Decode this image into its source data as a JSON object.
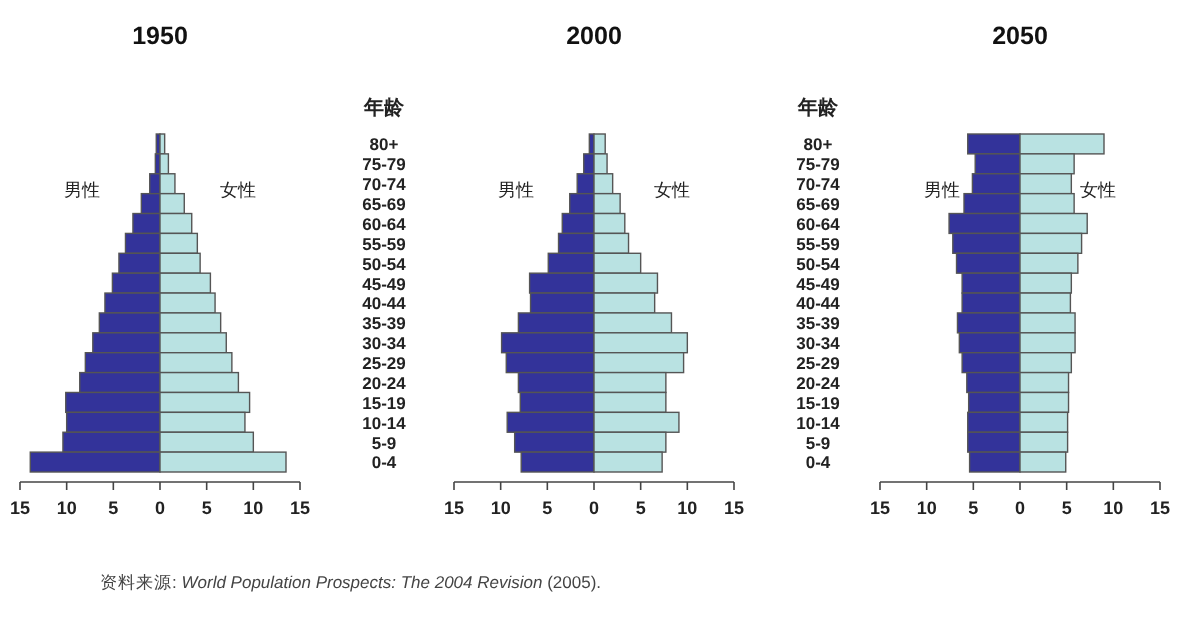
{
  "chart_data": [
    {
      "type": "bar",
      "orientation": "horizontal",
      "stacked": true,
      "title": "1950",
      "ylabel": "年龄",
      "categories": [
        "80+",
        "75-79",
        "70-74",
        "65-69",
        "60-64",
        "55-59",
        "50-54",
        "45-49",
        "40-44",
        "35-39",
        "30-34",
        "25-29",
        "20-24",
        "15-19",
        "10-14",
        "5-9",
        "0-4"
      ],
      "series": [
        {
          "name": "男性",
          "color": "#33339a",
          "values": [
            -0.4,
            -0.5,
            -1.1,
            -2.0,
            -2.9,
            -3.7,
            -4.4,
            -5.1,
            -5.9,
            -6.5,
            -7.2,
            -8.0,
            -8.6,
            -10.1,
            -10.0,
            -10.4,
            -13.9
          ]
        },
        {
          "name": "女性",
          "color": "#b9e2e2",
          "values": [
            0.5,
            0.9,
            1.6,
            2.6,
            3.4,
            4.0,
            4.3,
            5.4,
            5.9,
            6.5,
            7.1,
            7.7,
            8.4,
            9.6,
            9.1,
            10.0,
            13.5
          ]
        }
      ],
      "xlim": [
        -15,
        15
      ],
      "xticks": [
        {
          "value": -15,
          "label": "15"
        },
        {
          "value": -10,
          "label": "10"
        },
        {
          "value": -5,
          "label": "5"
        },
        0,
        5,
        10,
        15
      ],
      "annotations": [
        "资料来源: *World Population Prospects: The 2004 Revision* (2005)."
      ]
    },
    {
      "type": "bar",
      "orientation": "horizontal",
      "stacked": true,
      "title": "2000",
      "ylabel": "年龄",
      "categories": [
        "80+",
        "75-79",
        "70-74",
        "65-69",
        "60-64",
        "55-59",
        "50-54",
        "45-49",
        "40-44",
        "35-39",
        "30-34",
        "25-29",
        "20-24",
        "15-19",
        "10-14",
        "5-9",
        "0-4"
      ],
      "series": [
        {
          "name": "男性",
          "color": "#33339a",
          "values": [
            -0.5,
            -1.1,
            -1.8,
            -2.6,
            -3.4,
            -3.8,
            -4.9,
            -6.9,
            -6.8,
            -8.1,
            -9.9,
            -9.4,
            -8.1,
            -7.9,
            -9.3,
            -8.5,
            -7.8
          ]
        },
        {
          "name": "女性",
          "color": "#b9e2e2",
          "values": [
            1.2,
            1.4,
            2.0,
            2.8,
            3.3,
            3.7,
            5.0,
            6.8,
            6.5,
            8.3,
            10.0,
            9.6,
            7.7,
            7.7,
            9.1,
            7.7,
            7.3
          ]
        }
      ],
      "xlim": [
        -15,
        15
      ],
      "xticks": [
        {
          "value": -15,
          "label": "15"
        },
        {
          "value": -10,
          "label": "10"
        },
        {
          "value": -5,
          "label": "5"
        },
        0,
        5,
        10,
        15
      ]
    },
    {
      "type": "bar",
      "orientation": "horizontal",
      "stacked": true,
      "title": "2050",
      "tick_labels": "x",
      "categories": [
        null,
        null,
        null,
        null,
        null,
        null,
        null,
        null,
        null,
        null,
        null,
        null,
        null,
        null,
        null,
        null,
        null
      ],
      "series": [
        {
          "name": "男性",
          "color": "#33339a",
          "values": [
            -5.6,
            -4.8,
            -5.1,
            -6.0,
            -7.6,
            -7.2,
            -6.8,
            -6.2,
            -6.2,
            -6.7,
            -6.5,
            -6.2,
            -5.7,
            -5.5,
            -5.6,
            -5.6,
            -5.4
          ]
        },
        {
          "name": "女性",
          "color": "#b9e2e2",
          "values": [
            9.0,
            5.8,
            5.5,
            5.8,
            7.2,
            6.6,
            6.2,
            5.5,
            5.4,
            5.9,
            5.9,
            5.5,
            5.2,
            5.2,
            5.1,
            5.1,
            4.9
          ]
        }
      ],
      "xlim": [
        -15,
        15
      ],
      "xticks": [
        {
          "value": -15,
          "label": "15"
        },
        {
          "value": -10,
          "label": "10"
        },
        {
          "value": -5,
          "label": "5"
        },
        0,
        5,
        10,
        15
      ]
    }
  ]
}
